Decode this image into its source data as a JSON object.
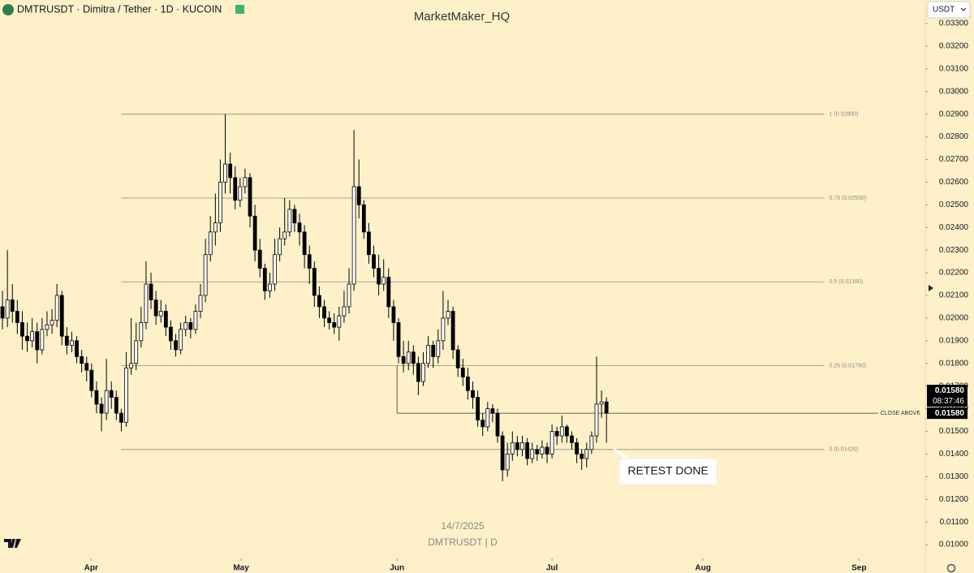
{
  "header": {
    "symbol": "DMTRUSDT · Dimitra / Tether · 1D · KUCOIN",
    "author": "MarketMaker_HQ",
    "currency": "USDT"
  },
  "watermark": {
    "date": "14/7/2025",
    "symbol": "DMTRUSDT | D"
  },
  "chart_data": {
    "type": "candlestick",
    "open": [
      0.0205,
      0.02,
      0.0208,
      0.0203,
      0.0198,
      0.0192,
      0.019,
      0.0194,
      0.0186,
      0.0195,
      0.0197,
      0.0199,
      0.021,
      0.0192,
      0.0188,
      0.019,
      0.0183,
      0.018,
      0.0177,
      0.0168,
      0.0162,
      0.0158,
      0.0168,
      0.0165,
      0.0158,
      0.0154,
      0.0178,
      0.018,
      0.019,
      0.0198,
      0.0215,
      0.0208,
      0.0201,
      0.0203,
      0.0196,
      0.019,
      0.0186,
      0.0195,
      0.0198,
      0.0195,
      0.0203,
      0.021,
      0.0228,
      0.0238,
      0.0242,
      0.026,
      0.0268,
      0.0262,
      0.0252,
      0.0258,
      0.0262,
      0.0245,
      0.023,
      0.0222,
      0.0212,
      0.0215,
      0.0228,
      0.0235,
      0.0238,
      0.0248,
      0.0242,
      0.0238,
      0.0228,
      0.0222,
      0.021,
      0.0205,
      0.02,
      0.0198,
      0.0196,
      0.0201,
      0.0205,
      0.0215,
      0.0258,
      0.025,
      0.0238,
      0.0228,
      0.0222,
      0.0215,
      0.0218,
      0.0205,
      0.0198,
      0.0183,
      0.018,
      0.0185,
      0.018,
      0.0172,
      0.018,
      0.0188,
      0.0183,
      0.019,
      0.02,
      0.0203,
      0.0186,
      0.0178,
      0.0174,
      0.0168,
      0.0165,
      0.0155,
      0.0152,
      0.016,
      0.0158,
      0.0148,
      0.0133,
      0.014,
      0.0145,
      0.0142,
      0.0145,
      0.0138,
      0.0142,
      0.014,
      0.0143,
      0.014,
      0.015,
      0.0148,
      0.0152,
      0.0148,
      0.0145,
      0.014,
      0.0138,
      0.0142,
      0.0148,
      0.0162,
      0.0163
    ],
    "high": [
      0.0212,
      0.023,
      0.0215,
      0.0208,
      0.0203,
      0.0198,
      0.02,
      0.0198,
      0.02,
      0.0203,
      0.0204,
      0.0215,
      0.0212,
      0.0196,
      0.0194,
      0.0192,
      0.0186,
      0.0183,
      0.018,
      0.0172,
      0.0165,
      0.0182,
      0.0172,
      0.0168,
      0.016,
      0.0185,
      0.02,
      0.0198,
      0.0205,
      0.0225,
      0.022,
      0.0212,
      0.0208,
      0.0206,
      0.0199,
      0.0193,
      0.0198,
      0.0201,
      0.02,
      0.0206,
      0.0215,
      0.0235,
      0.0245,
      0.0255,
      0.027,
      0.029,
      0.0273,
      0.0267,
      0.0262,
      0.0266,
      0.0264,
      0.025,
      0.0235,
      0.0224,
      0.022,
      0.0235,
      0.024,
      0.0253,
      0.0252,
      0.025,
      0.0246,
      0.0241,
      0.0232,
      0.0225,
      0.0214,
      0.0208,
      0.0203,
      0.0202,
      0.0205,
      0.0212,
      0.0222,
      0.0283,
      0.027,
      0.0252,
      0.0242,
      0.0232,
      0.0228,
      0.0226,
      0.0222,
      0.0208,
      0.02,
      0.019,
      0.019,
      0.0188,
      0.0183,
      0.0185,
      0.0192,
      0.019,
      0.0195,
      0.0212,
      0.0208,
      0.0205,
      0.0188,
      0.0182,
      0.0178,
      0.0172,
      0.0168,
      0.0158,
      0.0163,
      0.0162,
      0.016,
      0.015,
      0.0145,
      0.015,
      0.0148,
      0.0148,
      0.0147,
      0.0145,
      0.0144,
      0.0146,
      0.0145,
      0.0153,
      0.0152,
      0.0157,
      0.0153,
      0.015,
      0.0147,
      0.0142,
      0.0145,
      0.015,
      0.0183,
      0.0168,
      0.0165
    ],
    "low": [
      0.0195,
      0.0196,
      0.0198,
      0.0193,
      0.0186,
      0.0185,
      0.0187,
      0.018,
      0.0184,
      0.0192,
      0.0193,
      0.0196,
      0.0188,
      0.0184,
      0.0185,
      0.018,
      0.0176,
      0.0172,
      0.0165,
      0.0158,
      0.015,
      0.0155,
      0.016,
      0.0155,
      0.015,
      0.0152,
      0.0175,
      0.0177,
      0.0187,
      0.0195,
      0.0204,
      0.0197,
      0.0198,
      0.0192,
      0.0186,
      0.0183,
      0.0184,
      0.0192,
      0.0191,
      0.0193,
      0.02,
      0.0207,
      0.0225,
      0.0232,
      0.0238,
      0.0255,
      0.0255,
      0.0248,
      0.0249,
      0.0255,
      0.024,
      0.0225,
      0.0218,
      0.0208,
      0.0209,
      0.0212,
      0.0225,
      0.0232,
      0.0236,
      0.0238,
      0.0232,
      0.0222,
      0.0215,
      0.0205,
      0.02,
      0.0196,
      0.0195,
      0.0193,
      0.019,
      0.0198,
      0.0202,
      0.0212,
      0.0244,
      0.0235,
      0.0224,
      0.0218,
      0.021,
      0.0212,
      0.02,
      0.019,
      0.018,
      0.0176,
      0.0177,
      0.0175,
      0.0166,
      0.017,
      0.0178,
      0.0178,
      0.018,
      0.0186,
      0.0197,
      0.0182,
      0.0174,
      0.017,
      0.0164,
      0.016,
      0.0152,
      0.0148,
      0.015,
      0.0154,
      0.0145,
      0.0128,
      0.013,
      0.0137,
      0.0139,
      0.0139,
      0.0135,
      0.0136,
      0.0137,
      0.0138,
      0.0136,
      0.0138,
      0.0144,
      0.0145,
      0.0145,
      0.0142,
      0.0136,
      0.0133,
      0.0134,
      0.014,
      0.0145,
      0.0156,
      0.0145
    ],
    "close": [
      0.02,
      0.0208,
      0.0203,
      0.0198,
      0.0192,
      0.019,
      0.0194,
      0.0186,
      0.0195,
      0.0197,
      0.0199,
      0.021,
      0.0192,
      0.0188,
      0.019,
      0.0183,
      0.018,
      0.0177,
      0.0168,
      0.0162,
      0.0158,
      0.0168,
      0.0165,
      0.0158,
      0.0154,
      0.0178,
      0.018,
      0.019,
      0.0198,
      0.0215,
      0.0208,
      0.0201,
      0.0203,
      0.0196,
      0.019,
      0.0186,
      0.0195,
      0.0198,
      0.0195,
      0.0203,
      0.021,
      0.0228,
      0.0238,
      0.0242,
      0.026,
      0.0268,
      0.0262,
      0.0252,
      0.0258,
      0.0262,
      0.0245,
      0.023,
      0.0222,
      0.0212,
      0.0215,
      0.0228,
      0.0235,
      0.0238,
      0.0248,
      0.0242,
      0.0238,
      0.0228,
      0.0222,
      0.021,
      0.0205,
      0.02,
      0.0198,
      0.0196,
      0.0201,
      0.0205,
      0.0215,
      0.0258,
      0.025,
      0.0238,
      0.0228,
      0.0222,
      0.0215,
      0.0218,
      0.0205,
      0.0198,
      0.0183,
      0.018,
      0.0185,
      0.018,
      0.0172,
      0.018,
      0.0188,
      0.0183,
      0.019,
      0.02,
      0.0203,
      0.0186,
      0.0178,
      0.0174,
      0.0168,
      0.0165,
      0.0155,
      0.0152,
      0.016,
      0.0158,
      0.0148,
      0.0133,
      0.014,
      0.0145,
      0.0142,
      0.0145,
      0.0138,
      0.0142,
      0.014,
      0.0143,
      0.014,
      0.015,
      0.0148,
      0.0152,
      0.0148,
      0.0145,
      0.014,
      0.0138,
      0.0142,
      0.0148,
      0.0162,
      0.0163,
      0.0158
    ],
    "up_color": "#ffffff",
    "down_color": "#000000",
    "xlim": [
      -0.5,
      186.4
    ],
    "xticks": [
      {
        "value": 17.9,
        "label": "Apr"
      },
      {
        "value": 48.2,
        "label": "May"
      },
      {
        "value": 79.7,
        "label": "Jun"
      },
      {
        "value": 111.0,
        "label": "Jul"
      },
      {
        "value": 141.5,
        "label": "Aug"
      },
      {
        "value": 173.0,
        "label": "Sep"
      }
    ],
    "ylim": [
      0.0095,
      0.03404
    ],
    "yticks": [
      {
        "value": 0.01,
        "label": "0.01000"
      },
      {
        "value": 0.011,
        "label": "0.01100"
      },
      {
        "value": 0.012,
        "label": "0.01200"
      },
      {
        "value": 0.013,
        "label": "0.01300"
      },
      {
        "value": 0.014,
        "label": "0.01400"
      },
      {
        "value": 0.015,
        "label": "0.01500"
      },
      {
        "value": 0.016,
        "label": "0.01600"
      },
      {
        "value": 0.017,
        "label": "0.01700"
      },
      {
        "value": 0.018,
        "label": "0.01800"
      },
      {
        "value": 0.019,
        "label": "0.01900"
      },
      {
        "value": 0.02,
        "label": "0.02000"
      },
      {
        "value": 0.021,
        "label": "0.02100"
      },
      {
        "value": 0.022,
        "label": "0.02200"
      },
      {
        "value": 0.023,
        "label": "0.02300"
      },
      {
        "value": 0.024,
        "label": "0.02400"
      },
      {
        "value": 0.025,
        "label": "0.02500"
      },
      {
        "value": 0.026,
        "label": "0.02600"
      },
      {
        "value": 0.027,
        "label": "0.02700"
      },
      {
        "value": 0.028,
        "label": "0.02800"
      },
      {
        "value": 0.029,
        "label": "0.02900"
      },
      {
        "value": 0.03,
        "label": "0.03000"
      },
      {
        "value": 0.031,
        "label": "0.03100"
      },
      {
        "value": 0.032,
        "label": "0.03200"
      },
      {
        "value": 0.033,
        "label": "0.03300"
      }
    ],
    "fib_x": [
      24,
      166
    ],
    "fib_levels": [
      {
        "label": "1 (0.02900)",
        "value": 0.029
      },
      {
        "label": "0.75 (0.02530)",
        "value": 0.0253
      },
      {
        "label": "0.5 (0.02160)",
        "value": 0.0216
      },
      {
        "label": "0.25 (0.01790)",
        "value": 0.0179
      },
      {
        "label": "0 (0.01420)",
        "value": 0.0142
      }
    ],
    "close_above": {
      "text": "CLOSE ABOVE",
      "label": "0.01580",
      "value": 0.0158,
      "x": 79.7,
      "from": 0.0179
    },
    "last_price": {
      "label": "0.01580",
      "value": 0.0158,
      "countdown": "08:37:46"
    },
    "annotation": "RETEST DONE"
  }
}
